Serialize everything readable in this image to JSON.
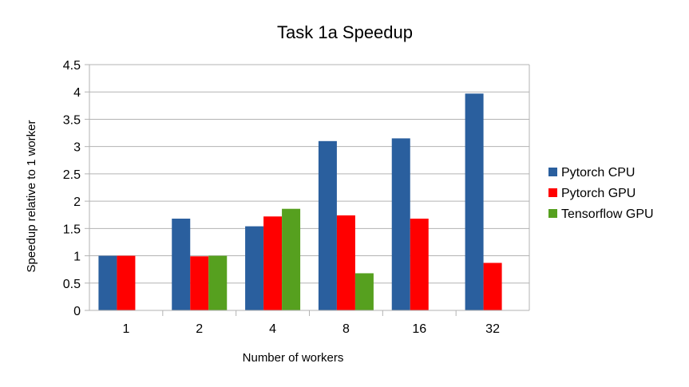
{
  "chart_data": {
    "type": "bar",
    "title": "Task 1a Speedup",
    "xlabel": "Number of workers",
    "ylabel": "Speedup relative to 1 worker",
    "categories": [
      "1",
      "2",
      "4",
      "8",
      "16",
      "32"
    ],
    "ylim": [
      0,
      4.5
    ],
    "yticks": [
      "0",
      "0.5",
      "1",
      "1.5",
      "2",
      "2.5",
      "3",
      "3.5",
      "4",
      "4.5"
    ],
    "grid": true,
    "legend_position": "right",
    "series": [
      {
        "name": "Pytorch CPU",
        "color": "#2a5f9e",
        "values": [
          1.0,
          1.68,
          1.54,
          3.1,
          3.15,
          3.97
        ]
      },
      {
        "name": "Pytorch GPU",
        "color": "#ff0000",
        "values": [
          1.0,
          0.99,
          1.72,
          1.74,
          1.68,
          0.87
        ]
      },
      {
        "name": "Tensorflow GPU",
        "color": "#56a01f",
        "values": [
          null,
          1.0,
          1.86,
          0.68,
          null,
          null
        ]
      }
    ]
  }
}
